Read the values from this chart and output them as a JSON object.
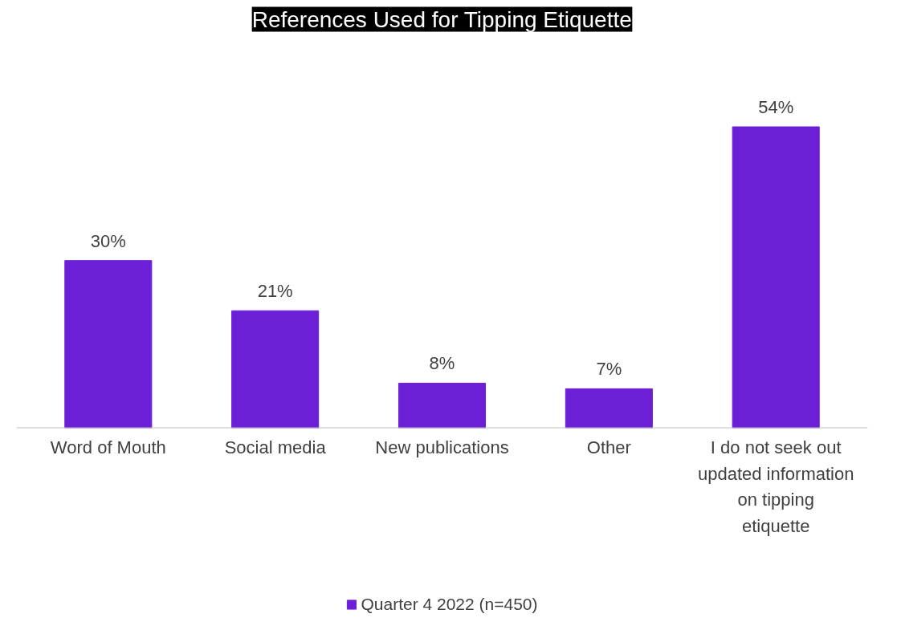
{
  "chart_data": {
    "type": "bar",
    "title": "References Used for Tipping Etiquette",
    "categories": [
      "Word of Mouth",
      "Social media",
      "New publications",
      "Other",
      "I do not seek out updated information on tipping etiquette"
    ],
    "series": [
      {
        "name": "Quarter 4 2022 (n=450)",
        "color": "#6c1fd6",
        "values": [
          30,
          21,
          8,
          7,
          54
        ],
        "value_labels": [
          "30%",
          "21%",
          "8%",
          "7%",
          "54%"
        ]
      }
    ],
    "legend": "bottom",
    "grid": false
  }
}
